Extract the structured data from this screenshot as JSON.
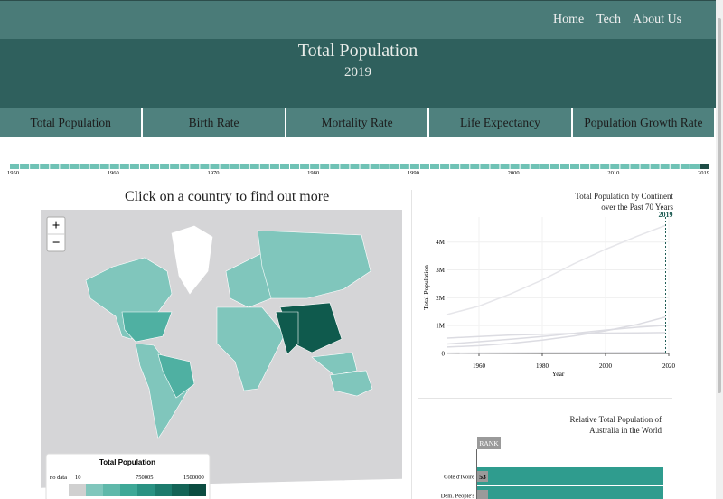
{
  "nav": {
    "links": [
      "Home",
      "Tech",
      "About Us"
    ]
  },
  "header": {
    "title": "Total Population",
    "year": "2019"
  },
  "tabs": [
    "Total Population",
    "Birth Rate",
    "Mortality Rate",
    "Life Expectancy",
    "Population Growth Rate"
  ],
  "timeline": {
    "labels": [
      "1950",
      "1960",
      "1970",
      "1980",
      "1990",
      "2000",
      "2010",
      "2019"
    ]
  },
  "map": {
    "prompt": "Click on a country to find out more",
    "zoom_in": "+",
    "zoom_out": "−",
    "legend": {
      "title": "Total Population",
      "labels": [
        "no data",
        "10",
        "750005",
        "1500000"
      ]
    }
  },
  "chart_data": {
    "type": "line",
    "title": "Total Population by Continent over the Past 70 Years",
    "marker_label": "2019",
    "marker_x": 2019,
    "x_label": "Year",
    "y_label": "Total Population",
    "x": [
      1950,
      1960,
      1970,
      1980,
      1990,
      2000,
      2010,
      2019
    ],
    "series": [
      {
        "color": "#e6e6ea",
        "values": [
          1400000,
          1700000,
          2140000,
          2640000,
          3220000,
          3740000,
          4210000,
          4600000
        ]
      },
      {
        "color": "#dcdce2",
        "values": [
          230000,
          280000,
          360000,
          480000,
          630000,
          810000,
          1040000,
          1310000
        ]
      },
      {
        "color": "#dcdce2",
        "values": [
          340000,
          420000,
          510000,
          610000,
          720000,
          840000,
          940000,
          1010000
        ]
      },
      {
        "color": "#dcdce2",
        "values": [
          550000,
          610000,
          660000,
          690000,
          720000,
          730000,
          740000,
          750000
        ]
      },
      {
        "color": "#dcdce2",
        "values": [
          13000,
          16000,
          20000,
          23000,
          27000,
          31000,
          37000,
          42000
        ]
      }
    ],
    "xlim": [
      1950,
      2020
    ],
    "ylim": [
      0,
      4900000
    ],
    "xticks": [
      1960,
      1980,
      2000,
      2020
    ],
    "yticks": [
      0,
      {
        "value": 1000000,
        "label": "1M"
      },
      {
        "value": 2000000,
        "label": "2M"
      },
      {
        "value": 3000000,
        "label": "3M"
      },
      {
        "value": 4000000,
        "label": "4M"
      }
    ],
    "grid": true
  },
  "rank_chart": {
    "title": "Relative Total Population of Australia in the World",
    "rank_label": "RANK",
    "rows": [
      {
        "country": "Côte d'Ivoire",
        "rank": "53"
      },
      {
        "country": "Dem. People's"
      }
    ]
  }
}
